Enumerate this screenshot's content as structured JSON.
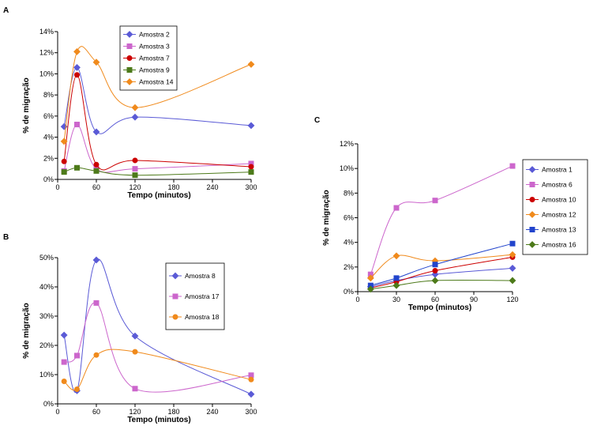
{
  "chart_data": [
    {
      "panel": "A",
      "type": "line",
      "xlabel": "Tempo (minutos)",
      "ylabel": "% de migração",
      "xlim": [
        0,
        300
      ],
      "ylim": [
        0,
        14
      ],
      "xticks": [
        0,
        60,
        120,
        180,
        240,
        300
      ],
      "yticks": [
        0,
        2,
        4,
        6,
        8,
        10,
        12,
        14
      ],
      "ytick_suffix": "%",
      "legend_position": "top-right",
      "series": [
        {
          "name": "Amostra 2",
          "color": "#5a5ad6",
          "marker": "diamond",
          "x": [
            10,
            30,
            60,
            120,
            300
          ],
          "y": [
            5.0,
            10.6,
            4.5,
            5.9,
            5.1
          ]
        },
        {
          "name": "Amostra 3",
          "color": "#cc66cc",
          "marker": "square",
          "x": [
            10,
            30,
            60,
            120,
            300
          ],
          "y": [
            0.8,
            5.2,
            1.0,
            1.0,
            1.5
          ]
        },
        {
          "name": "Amostra 7",
          "color": "#cc0000",
          "marker": "circle",
          "x": [
            10,
            30,
            60,
            120,
            300
          ],
          "y": [
            1.7,
            9.9,
            1.4,
            1.8,
            1.2
          ]
        },
        {
          "name": "Amostra 9",
          "color": "#4d7a1a",
          "marker": "square",
          "x": [
            10,
            30,
            60,
            120,
            300
          ],
          "y": [
            0.7,
            1.1,
            0.8,
            0.4,
            0.7
          ]
        },
        {
          "name": "Amostra 14",
          "color": "#f08a1c",
          "marker": "diamond",
          "x": [
            10,
            30,
            60,
            120,
            300
          ],
          "y": [
            3.6,
            12.1,
            11.1,
            6.8,
            10.9
          ]
        }
      ]
    },
    {
      "panel": "B",
      "type": "line",
      "xlabel": "Tempo (minutos)",
      "ylabel": "% de migração",
      "xlim": [
        0,
        300
      ],
      "ylim": [
        0,
        50
      ],
      "xticks": [
        0,
        60,
        120,
        180,
        240,
        300
      ],
      "yticks": [
        0,
        10,
        20,
        30,
        40,
        50
      ],
      "ytick_suffix": "%",
      "legend_position": "top-right",
      "series": [
        {
          "name": "Amostra 8",
          "color": "#5a5ad6",
          "marker": "diamond",
          "x": [
            10,
            30,
            60,
            120,
            300
          ],
          "y": [
            23.5,
            4.5,
            49.2,
            23.2,
            3.3
          ]
        },
        {
          "name": "Amostra 17",
          "color": "#cc66cc",
          "marker": "square",
          "x": [
            10,
            30,
            60,
            120,
            300
          ],
          "y": [
            14.3,
            16.5,
            34.5,
            5.2,
            9.8
          ]
        },
        {
          "name": "Amostra 18",
          "color": "#f08a1c",
          "marker": "circle",
          "x": [
            10,
            30,
            60,
            120,
            300
          ],
          "y": [
            7.7,
            5.0,
            16.7,
            17.8,
            8.3
          ]
        }
      ]
    },
    {
      "panel": "C",
      "type": "line",
      "xlabel": "Tempo (minutos)",
      "ylabel": "% de migração",
      "xlim": [
        0,
        120
      ],
      "ylim": [
        0,
        12
      ],
      "xticks": [
        0,
        30,
        60,
        90,
        120
      ],
      "yticks": [
        0,
        2,
        4,
        6,
        8,
        10,
        12
      ],
      "ytick_suffix": "%",
      "legend_position": "right",
      "series": [
        {
          "name": "Amostra 1",
          "color": "#5a5ad6",
          "marker": "diamond",
          "x": [
            10,
            30,
            60,
            120
          ],
          "y": [
            0.4,
            0.9,
            1.4,
            1.9
          ]
        },
        {
          "name": "Amostra 6",
          "color": "#cc66cc",
          "marker": "square",
          "x": [
            10,
            30,
            60,
            120
          ],
          "y": [
            1.4,
            6.8,
            7.4,
            10.2
          ]
        },
        {
          "name": "Amostra 10",
          "color": "#cc0000",
          "marker": "circle",
          "x": [
            10,
            30,
            60,
            120
          ],
          "y": [
            0.3,
            0.8,
            1.7,
            2.8
          ]
        },
        {
          "name": "Amostra 12",
          "color": "#f08a1c",
          "marker": "diamond",
          "x": [
            10,
            30,
            60,
            120
          ],
          "y": [
            1.1,
            2.9,
            2.5,
            3.0
          ]
        },
        {
          "name": "Amostra 13",
          "color": "#2244cc",
          "marker": "square",
          "x": [
            10,
            30,
            60,
            120
          ],
          "y": [
            0.5,
            1.1,
            2.2,
            3.9
          ]
        },
        {
          "name": "Amostra 16",
          "color": "#4d7a1a",
          "marker": "diamond",
          "x": [
            10,
            30,
            60,
            120
          ],
          "y": [
            0.2,
            0.5,
            0.9,
            0.9
          ]
        }
      ]
    }
  ]
}
